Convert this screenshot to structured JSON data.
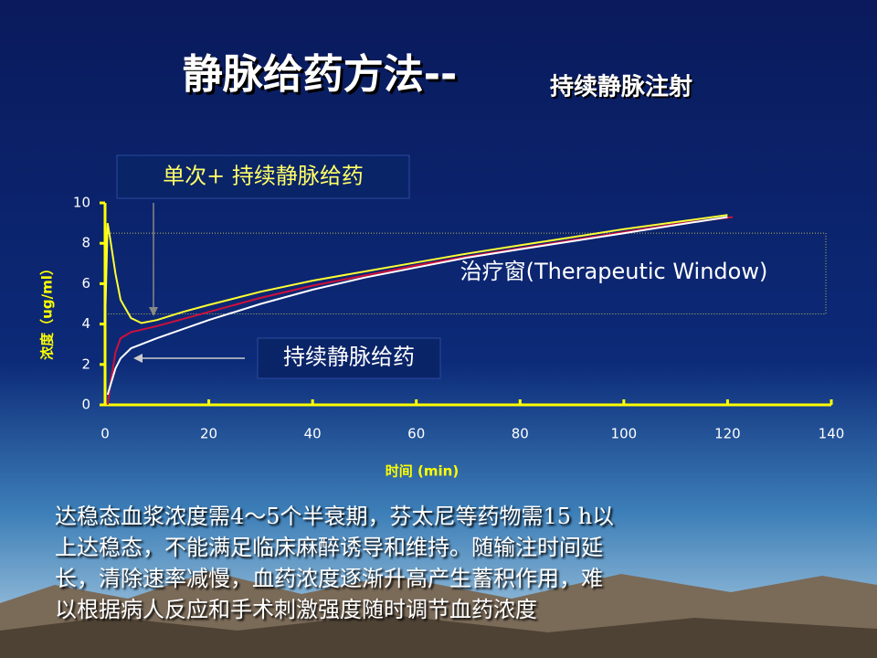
{
  "chart_data": {
    "type": "line",
    "title": "静脉给药方法--",
    "subtitle": "持续静脉注射",
    "xlabel": "时间 (min)",
    "ylabel": "浓度（ug/ml）",
    "xlim": [
      0,
      140
    ],
    "ylim": [
      0,
      10
    ],
    "xticks": [
      0,
      20,
      40,
      60,
      80,
      100,
      120,
      140
    ],
    "yticks": [
      0,
      2,
      4,
      6,
      8,
      10
    ],
    "grid": false,
    "axis_color": "#ffff00",
    "series": [
      {
        "color": "#ffff33",
        "x": [
          0,
          0.5,
          1,
          2,
          3,
          5,
          7,
          10,
          15,
          20,
          30,
          40,
          50,
          60,
          70,
          80,
          90,
          100,
          110,
          120
        ],
        "values": [
          4,
          9,
          8.2,
          6.5,
          5.2,
          4.3,
          4.05,
          4.2,
          4.6,
          4.95,
          5.6,
          6.15,
          6.6,
          7.05,
          7.5,
          7.9,
          8.3,
          8.7,
          9.05,
          9.4
        ]
      },
      {
        "color": "#d0103a",
        "x": [
          0.5,
          1,
          2,
          3,
          5,
          10,
          20,
          30,
          40,
          50,
          60,
          70,
          80,
          90,
          100,
          110,
          121
        ],
        "values": [
          0,
          1,
          2.6,
          3.3,
          3.6,
          3.9,
          4.6,
          5.3,
          5.9,
          6.4,
          6.9,
          7.35,
          7.75,
          8.15,
          8.55,
          8.95,
          9.3
        ]
      },
      {
        "color": "#ffffff",
        "x": [
          0.5,
          2,
          3,
          5,
          10,
          20,
          30,
          40,
          50,
          60,
          70,
          80,
          90,
          100,
          110,
          120
        ],
        "values": [
          0.5,
          1.8,
          2.3,
          2.8,
          3.3,
          4.2,
          5.0,
          5.7,
          6.3,
          6.8,
          7.3,
          7.7,
          8.1,
          8.5,
          8.9,
          9.3
        ]
      }
    ],
    "therapeutic_window": {
      "label": "治疗窗(Therapeutic Window)",
      "ylim": [
        4.5,
        8.5
      ]
    },
    "annotations": [
      "单次+ 持续静脉给药",
      "持续静脉给药"
    ]
  },
  "body": [
    "达稳态血浆浓度需4～5个半衰期，芬太尼等药物需15 h以",
    "上达稳态，不能满足临床麻醉诱导和维持。随输注时间延",
    "长，清除速率减慢，血药浓度逐渐升高产生蓄积作用，难",
    "以根据病人反应和手术刺激强度随时调节血药浓度"
  ]
}
